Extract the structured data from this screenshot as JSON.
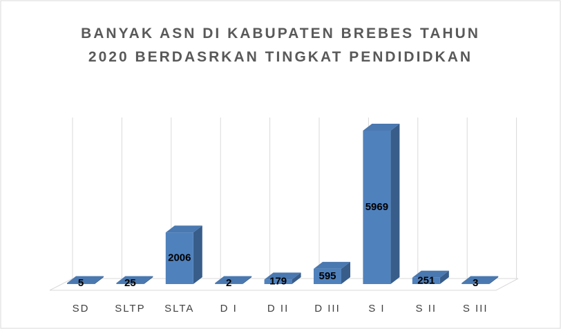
{
  "chart_data": {
    "type": "bar3d",
    "title": "BANYAK ASN DI KABUPATEN BREBES TAHUN 2020 BERDASRKAN TINGKAT PENDIDIDKAN",
    "categories": [
      "SD",
      "SLTP",
      "SLTA",
      "D I",
      "D II",
      "D III",
      "S I",
      "S II",
      "S III"
    ],
    "values": [
      5,
      25,
      2006,
      2,
      179,
      595,
      5969,
      251,
      3
    ],
    "color": "#4f81bd"
  }
}
